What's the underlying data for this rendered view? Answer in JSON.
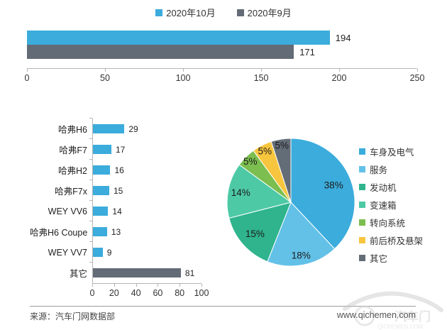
{
  "chart_data": [
    {
      "id": "monthly-complaints",
      "type": "bar",
      "orientation": "horizontal",
      "categories": [
        "2020年10月",
        "2020年9月"
      ],
      "values": [
        194,
        171
      ],
      "colors": [
        "#3bacdc",
        "#636b77"
      ],
      "xlim": [
        0,
        250
      ],
      "xticks": [
        0,
        50,
        100,
        150,
        200,
        250
      ],
      "legend_position": "top-center",
      "grid": false,
      "value_labels": true,
      "title": "",
      "xlabel": "",
      "ylabel": ""
    },
    {
      "id": "complaints-by-model",
      "type": "bar",
      "orientation": "horizontal",
      "categories": [
        "哈弗H6",
        "哈弗F7",
        "哈弗H2",
        "哈弗F7x",
        "WEY VV6",
        "哈弗H6 Coupe",
        "WEY VV7",
        "其它"
      ],
      "values": [
        29,
        17,
        16,
        15,
        14,
        13,
        9,
        81
      ],
      "colors": [
        "#3bacdc",
        "#3bacdc",
        "#3bacdc",
        "#3bacdc",
        "#3bacdc",
        "#3bacdc",
        "#3bacdc",
        "#636b77"
      ],
      "xlim": [
        0,
        100
      ],
      "xticks": [
        0,
        20,
        40,
        60,
        80,
        100
      ],
      "grid": false,
      "value_labels": true,
      "title": "",
      "xlabel": "",
      "ylabel": ""
    },
    {
      "id": "complaints-by-system",
      "type": "pie",
      "labels": [
        "车身及电气",
        "服务",
        "发动机",
        "变速箱",
        "转向系统",
        "前后桥及悬架",
        "其它"
      ],
      "values": [
        38,
        18,
        15,
        14,
        5,
        5,
        5
      ],
      "unit": "%",
      "colors": [
        "#3bacdc",
        "#63c1e8",
        "#2fb48d",
        "#4dc9a6",
        "#7cbe4f",
        "#f8c63e",
        "#636d77"
      ],
      "legend_position": "right",
      "start_angle_deg": 0,
      "direction": "clockwise"
    }
  ],
  "footer": {
    "source": "来源：汽车门网数据部",
    "url": "www.qichemen.com",
    "watermark_text": "汽车门",
    "watermark_sub": "QICHEMEN.COM"
  }
}
